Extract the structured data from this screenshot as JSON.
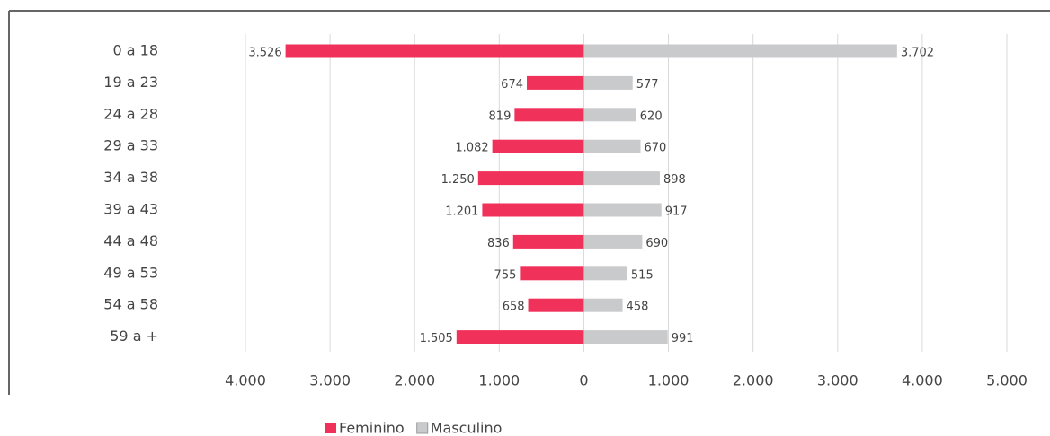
{
  "chart_data": {
    "type": "pyramid",
    "categories": [
      "0 a 18",
      "19 a 23",
      "24 a 28",
      "29 a 33",
      "34 a 38",
      "39 a 43",
      "44 a 48",
      "49 a 53",
      "54 a 58",
      "59 a +"
    ],
    "series": [
      {
        "name": "Feminino",
        "color": "#f0325a",
        "side": "left",
        "values": [
          3526,
          674,
          819,
          1082,
          1250,
          1201,
          836,
          755,
          658,
          1505
        ],
        "value_labels": [
          "3.526",
          "674",
          "819",
          "1.082",
          "1.250",
          "1.201",
          "836",
          "755",
          "658",
          "1.505"
        ]
      },
      {
        "name": "Masculino",
        "color": "#c8cacc",
        "side": "right",
        "values": [
          3702,
          577,
          620,
          670,
          898,
          917,
          690,
          515,
          458,
          991
        ],
        "value_labels": [
          "3.702",
          "577",
          "620",
          "670",
          "898",
          "917",
          "690",
          "515",
          "458",
          "991"
        ]
      }
    ],
    "xlim": [
      -4000,
      5000
    ],
    "xticks": [
      {
        "value": -4000,
        "label": "4.000"
      },
      {
        "value": -3000,
        "label": "3.000"
      },
      {
        "value": -2000,
        "label": "2.000"
      },
      {
        "value": -1000,
        "label": "1.000"
      },
      0,
      {
        "value": 1000,
        "label": "1.000"
      },
      {
        "value": 2000,
        "label": "2.000"
      },
      {
        "value": 3000,
        "label": "3.000"
      },
      {
        "value": 4000,
        "label": "4.000"
      },
      {
        "value": 5000,
        "label": "5.000"
      }
    ],
    "grid": true
  }
}
